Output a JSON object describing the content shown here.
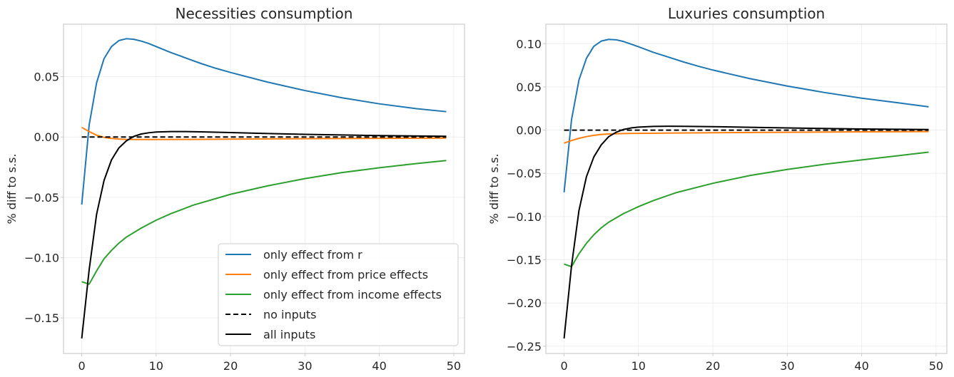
{
  "chart_data": [
    {
      "type": "line",
      "title": "Necessities consumption",
      "xlabel": "",
      "ylabel": "% diff to s.s.",
      "xlim": [
        -2.45,
        51.45
      ],
      "ylim": [
        -0.1795,
        0.0935
      ],
      "xticks": [
        0,
        10,
        20,
        30,
        40,
        50
      ],
      "xtick_labels": [
        "0",
        "10",
        "20",
        "30",
        "40",
        "50"
      ],
      "yticks": [
        -0.15,
        -0.1,
        -0.05,
        0.0,
        0.05
      ],
      "ytick_labels": [
        "−0.15",
        "−0.10",
        "−0.05",
        "0.00",
        "0.05"
      ],
      "grid": true,
      "legend": "lower-right",
      "series": [
        {
          "name": "only effect from r",
          "color": "#1f77b4",
          "dash": "solid",
          "x": [
            0,
            1,
            2,
            3,
            4,
            5,
            6,
            7,
            8,
            9,
            10,
            12,
            14,
            16,
            18,
            20,
            25,
            30,
            35,
            40,
            45,
            49
          ],
          "y": [
            -0.056,
            0.01,
            0.045,
            0.065,
            0.075,
            0.08,
            0.0815,
            0.081,
            0.0795,
            0.0775,
            0.075,
            0.07,
            0.0655,
            0.061,
            0.057,
            0.0535,
            0.0455,
            0.0385,
            0.0325,
            0.0275,
            0.0235,
            0.021
          ]
        },
        {
          "name": "only effect from price effects",
          "color": "#ff7f0e",
          "dash": "solid",
          "x": [
            0,
            1,
            2,
            3,
            4,
            5,
            6,
            8,
            10,
            15,
            20,
            30,
            40,
            49
          ],
          "y": [
            0.008,
            0.0045,
            0.0015,
            -0.0003,
            -0.0012,
            -0.0017,
            -0.002,
            -0.0021,
            -0.0021,
            -0.002,
            -0.0018,
            -0.0014,
            -0.0011,
            -0.0009
          ]
        },
        {
          "name": "only effect from income effects",
          "color": "#2ca02c",
          "dash": "solid",
          "x": [
            0,
            1,
            2,
            3,
            4,
            5,
            6,
            8,
            10,
            12,
            15,
            20,
            25,
            30,
            35,
            40,
            45,
            49
          ],
          "y": [
            -0.12,
            -0.122,
            -0.111,
            -0.101,
            -0.094,
            -0.088,
            -0.083,
            -0.0755,
            -0.069,
            -0.0635,
            -0.0565,
            -0.0475,
            -0.0405,
            -0.0345,
            -0.0295,
            -0.0255,
            -0.022,
            -0.0195
          ]
        },
        {
          "name": "no inputs",
          "color": "#000000",
          "dash": "dashed",
          "x": [
            0,
            49
          ],
          "y": [
            0.0,
            0.0
          ]
        },
        {
          "name": "all inputs",
          "color": "#000000",
          "dash": "solid",
          "x": [
            0,
            1,
            2,
            3,
            4,
            5,
            6,
            7,
            8,
            9,
            10,
            12,
            14,
            16,
            20,
            25,
            30,
            40,
            49
          ],
          "y": [
            -0.167,
            -0.11,
            -0.064,
            -0.036,
            -0.019,
            -0.009,
            -0.0032,
            0.0005,
            0.0025,
            0.0035,
            0.0041,
            0.0045,
            0.0045,
            0.0043,
            0.0037,
            0.0029,
            0.0022,
            0.0012,
            0.0006
          ]
        }
      ]
    },
    {
      "type": "line",
      "title": "Luxuries consumption",
      "xlabel": "",
      "ylabel": "% diff to s.s.",
      "xlim": [
        -2.45,
        51.45
      ],
      "ylim": [
        -0.2584,
        0.1225
      ],
      "xticks": [
        0,
        10,
        20,
        30,
        40,
        50
      ],
      "xtick_labels": [
        "0",
        "10",
        "20",
        "30",
        "40",
        "50"
      ],
      "yticks": [
        -0.25,
        -0.2,
        -0.15,
        -0.1,
        -0.05,
        0.0,
        0.05,
        0.1
      ],
      "ytick_labels": [
        "−0.25",
        "−0.20",
        "−0.15",
        "−0.10",
        "−0.05",
        "0.00",
        "0.05",
        "0.10"
      ],
      "grid": true,
      "legend": "none",
      "series": [
        {
          "name": "only effect from r",
          "color": "#1f77b4",
          "dash": "solid",
          "x": [
            0,
            1,
            2,
            3,
            4,
            5,
            6,
            7,
            8,
            9,
            10,
            12,
            14,
            16,
            18,
            20,
            25,
            30,
            35,
            40,
            45,
            49
          ],
          "y": [
            -0.072,
            0.012,
            0.058,
            0.083,
            0.097,
            0.103,
            0.105,
            0.1045,
            0.1025,
            0.0995,
            0.0965,
            0.09,
            0.0845,
            0.079,
            0.074,
            0.0695,
            0.0595,
            0.051,
            0.0435,
            0.037,
            0.0315,
            0.027
          ]
        },
        {
          "name": "only effect from price effects",
          "color": "#ff7f0e",
          "dash": "solid",
          "x": [
            0,
            1,
            2,
            3,
            4,
            5,
            6,
            8,
            10,
            15,
            20,
            30,
            40,
            49
          ],
          "y": [
            -0.015,
            -0.012,
            -0.0095,
            -0.0075,
            -0.006,
            -0.005,
            -0.0045,
            -0.004,
            -0.0037,
            -0.0033,
            -0.003,
            -0.0025,
            -0.002,
            -0.0017
          ]
        },
        {
          "name": "only effect from income effects",
          "color": "#2ca02c",
          "dash": "solid",
          "x": [
            0,
            1,
            2,
            3,
            4,
            5,
            6,
            8,
            10,
            12,
            15,
            20,
            25,
            30,
            35,
            40,
            45,
            49
          ],
          "y": [
            -0.155,
            -0.158,
            -0.143,
            -0.131,
            -0.121,
            -0.113,
            -0.1065,
            -0.0965,
            -0.0885,
            -0.0815,
            -0.0725,
            -0.0615,
            -0.0525,
            -0.0455,
            -0.0395,
            -0.0345,
            -0.0295,
            -0.0255
          ]
        },
        {
          "name": "no inputs",
          "color": "#000000",
          "dash": "dashed",
          "x": [
            0,
            49
          ],
          "y": [
            0.0,
            0.0
          ]
        },
        {
          "name": "all inputs",
          "color": "#000000",
          "dash": "solid",
          "x": [
            0,
            1,
            2,
            3,
            4,
            5,
            6,
            7,
            8,
            9,
            10,
            12,
            14,
            16,
            20,
            25,
            30,
            40,
            49
          ],
          "y": [
            -0.241,
            -0.157,
            -0.093,
            -0.054,
            -0.031,
            -0.017,
            -0.0075,
            -0.0025,
            0.0008,
            0.0025,
            0.0035,
            0.0043,
            0.0045,
            0.0044,
            0.004,
            0.0033,
            0.0025,
            0.0013,
            0.0007
          ]
        }
      ]
    }
  ]
}
